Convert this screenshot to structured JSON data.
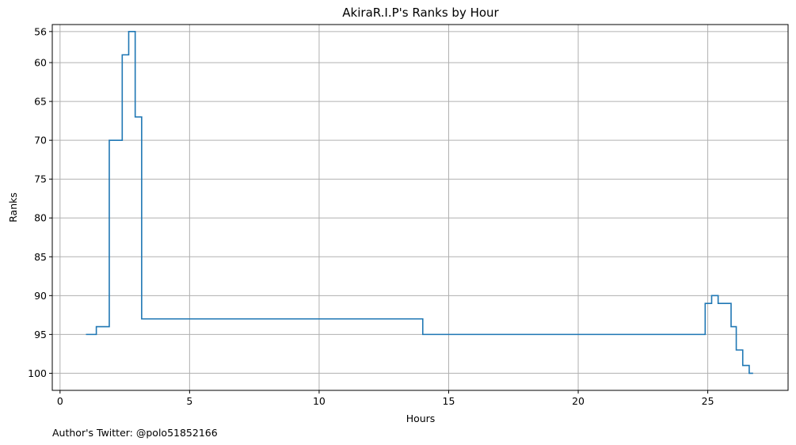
{
  "chart_data": {
    "type": "line",
    "step": "post",
    "title": "AkiraR.I.P's Ranks by Hour",
    "xlabel": "Hours",
    "ylabel": "Ranks",
    "y_inverted": true,
    "grid": true,
    "xlim": [
      -0.3,
      28.1
    ],
    "ylim": [
      102.2,
      55.1
    ],
    "xticks": [
      0,
      5,
      10,
      15,
      20,
      25
    ],
    "yticks": [
      56,
      60,
      65,
      70,
      75,
      80,
      85,
      90,
      95,
      100
    ],
    "line_color": "#1f77b4",
    "grid_color": "#b0b0b0",
    "series": [
      {
        "x": [
          1.0,
          1.4,
          1.9,
          2.4,
          2.65,
          2.9,
          3.15,
          14.0,
          24.9,
          25.15,
          25.4,
          25.9,
          26.1,
          26.35,
          26.6,
          26.75
        ],
        "y": [
          95,
          94,
          70,
          59,
          56,
          67,
          93,
          95,
          91,
          90,
          91,
          94,
          97,
          99,
          100,
          100
        ]
      }
    ]
  },
  "footer": "Author's Twitter: @polo51852166"
}
